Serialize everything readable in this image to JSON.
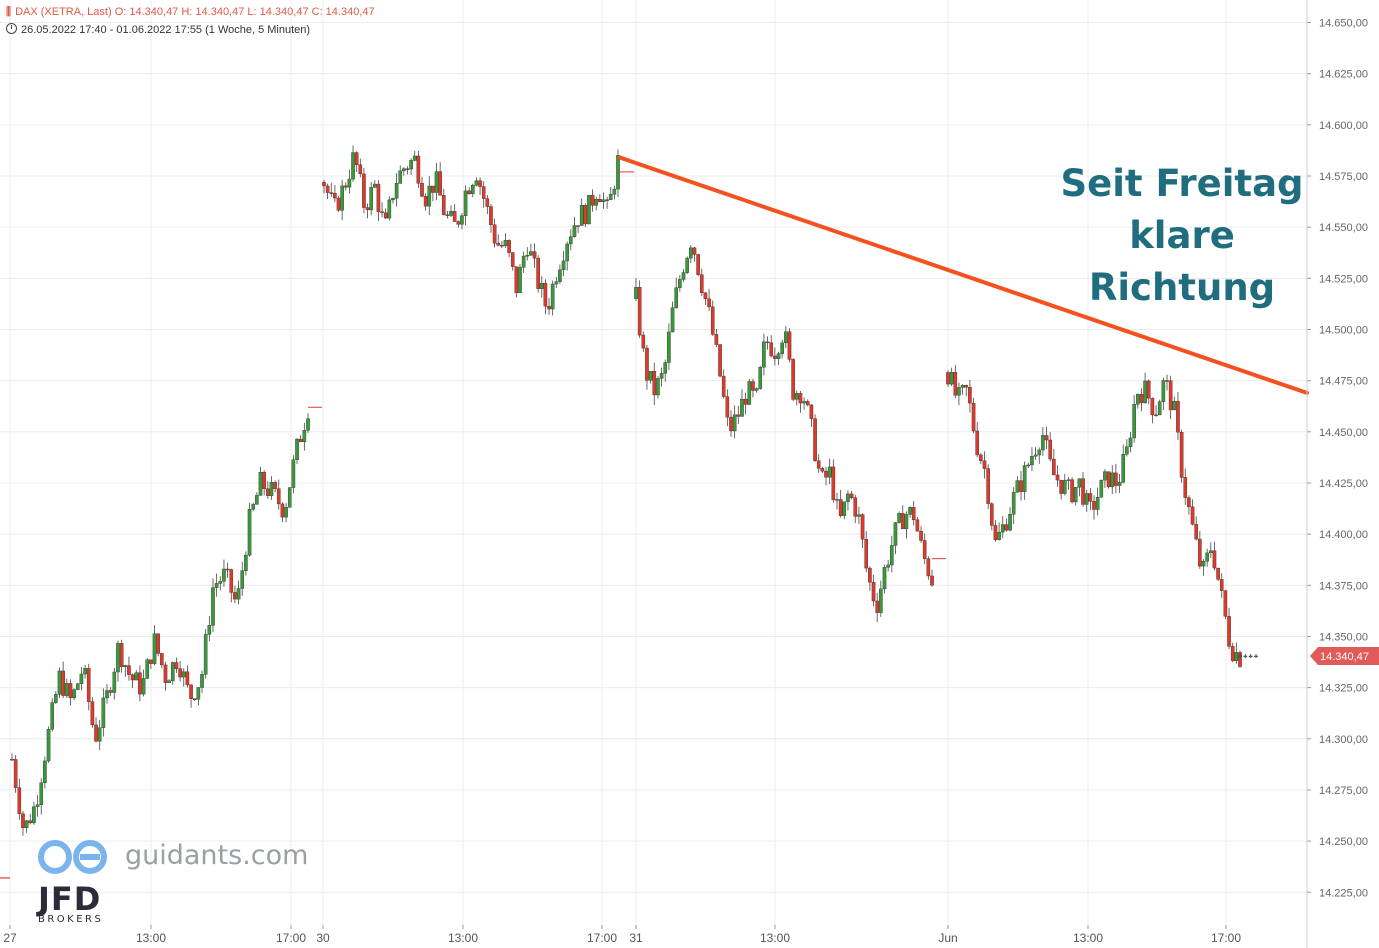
{
  "header": {
    "instrument_line": "DAX (XETRA, Last)  O: 14.340,47  H: 14.340,47  L: 14.340,47  C: 14.340,47",
    "range_line": "26.05.2022 17:40 - 01.06.2022 17:55   (1 Woche, 5 Minuten)"
  },
  "annotation": {
    "line1": "Seit Freitag",
    "line2": "klare",
    "line3": "Richtung"
  },
  "branding": {
    "site": "guidants.com",
    "broker": "JFD",
    "broker_sub": "BROKERS"
  },
  "colors": {
    "up": "#3a9a3a",
    "down": "#e0392b",
    "trendline": "#f4511e",
    "last_price": "#e05a5a",
    "grid": "#ececec",
    "annotation": "#1f6d7e"
  },
  "chart_data": {
    "type": "candlestick",
    "interval": "5 Minuten",
    "y_axis": {
      "ticks": [
        14225,
        14250,
        14275,
        14300,
        14325,
        14350,
        14375,
        14400,
        14425,
        14450,
        14475,
        14500,
        14525,
        14550,
        14575,
        14600,
        14625,
        14650
      ],
      "tick_labels": [
        "14.225,00",
        "14.250,00",
        "14.275,00",
        "14.300,00",
        "14.325,00",
        "14.350,00",
        "14.375,00",
        "14.400,00",
        "14.425,00",
        "14.450,00",
        "14.475,00",
        "14.500,00",
        "14.525,00",
        "14.550,00",
        "14.575,00",
        "14.600,00",
        "14.625,00",
        "14.650,00"
      ],
      "range": [
        14209,
        14661
      ]
    },
    "x_axis": {
      "labels": [
        "27",
        "13:00",
        "17:00",
        "30",
        "13:00",
        "17:00",
        "31",
        "13:00",
        "Jun",
        "13:00",
        "17:00"
      ]
    },
    "last_price": 14340.47,
    "last_price_label": "14.340,47",
    "prev_close_marker": 14232,
    "series_segments": [
      [
        14290,
        14255,
        14268,
        14300,
        14330,
        14318,
        14335,
        14300,
        14320,
        14345,
        14330,
        14325,
        14348,
        14330,
        14340,
        14320,
        14330,
        14375,
        14380,
        14365,
        14405,
        14425,
        14420,
        14412,
        14440,
        14462
      ],
      [
        14572,
        14558,
        14570,
        14585,
        14560,
        14570,
        14548,
        14572,
        14580,
        14583,
        14565,
        14573,
        14555,
        14550,
        14568,
        14578,
        14560,
        14542,
        14540,
        14520,
        14543,
        14525,
        14510,
        14530,
        14545,
        14555,
        14558,
        14570,
        14557,
        14582
      ],
      [
        14515,
        14480,
        14470,
        14478,
        14510,
        14530,
        14545,
        14525,
        14505,
        14480,
        14450,
        14458,
        14470,
        14465,
        14495,
        14490,
        14500,
        14470,
        14470,
        14450,
        14425,
        14430,
        14405,
        14420,
        14410,
        14380,
        14365,
        14385,
        14400,
        14410,
        14410,
        14390,
        14378
      ],
      [
        14479,
        14465,
        14470,
        14445,
        14430,
        14395,
        14405,
        14418,
        14428,
        14440,
        14450,
        14430,
        14425,
        14420,
        14425,
        14410,
        14420,
        14428,
        14425,
        14440,
        14470,
        14470,
        14460,
        14475,
        14460,
        14425,
        14402,
        14380,
        14395,
        14370,
        14345,
        14340
      ],
      [
        14340.47,
        14340.47
      ]
    ],
    "trendline": {
      "from_value": 14584,
      "to_value": 14469
    }
  }
}
